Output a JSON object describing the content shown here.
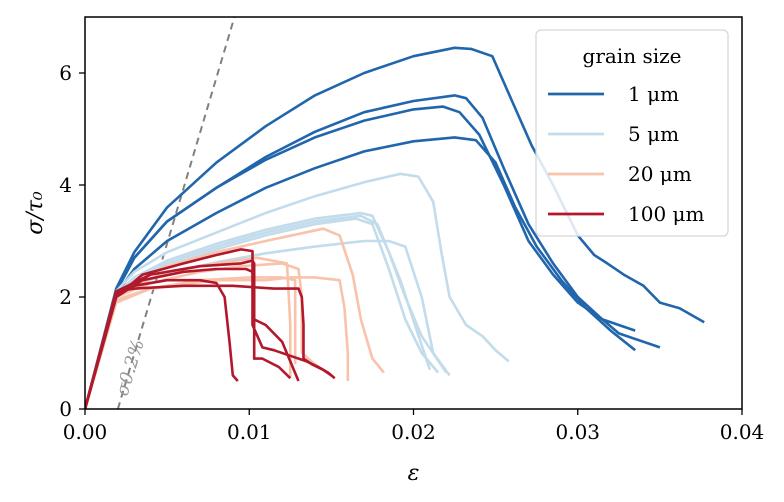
{
  "chart_data": {
    "type": "line",
    "xlabel": "ε",
    "ylabel": "σ/τ₀",
    "xlim": [
      0,
      0.04
    ],
    "ylim": [
      0,
      7
    ],
    "xticks": [
      0.0,
      0.01,
      0.02,
      0.03,
      0.04
    ],
    "xtick_labels": [
      "0.00",
      "0.01",
      "0.02",
      "0.03",
      "0.04"
    ],
    "yticks": [
      0,
      2,
      4,
      6
    ],
    "ytick_labels": [
      "0",
      "2",
      "4",
      "6"
    ],
    "grid": false,
    "legend": {
      "title": "grain size",
      "placement": "top-right",
      "entries": [
        {
          "label": "1 μm",
          "color": "#2166ac"
        },
        {
          "label": "5 μm",
          "color": "#c2dcec"
        },
        {
          "label": "20 μm",
          "color": "#f8c3aa"
        },
        {
          "label": "100 μm",
          "color": "#b2182b"
        }
      ]
    },
    "annotation": {
      "text": "σ0.2%",
      "line_x": [
        0.002,
        0.0091
      ],
      "line_y": [
        0,
        7
      ],
      "color": "#808080"
    },
    "series": [
      {
        "name": "1 μm",
        "group": 0,
        "x": [
          0,
          0.0019,
          0.003,
          0.005,
          0.008,
          0.011,
          0.014,
          0.017,
          0.02,
          0.0225,
          0.0235,
          0.0248,
          0.026,
          0.0272,
          0.0285,
          0.03,
          0.031,
          0.0318,
          0.0328,
          0.034,
          0.035,
          0.0362,
          0.0377
        ],
        "y": [
          0,
          2.15,
          2.8,
          3.6,
          4.4,
          5.05,
          5.6,
          6.0,
          6.3,
          6.45,
          6.43,
          6.3,
          5.5,
          4.7,
          4.0,
          3.1,
          2.75,
          2.6,
          2.4,
          2.2,
          1.9,
          1.8,
          1.55
        ]
      },
      {
        "name": "1 μm",
        "group": 0,
        "x": [
          0,
          0.0019,
          0.003,
          0.005,
          0.008,
          0.011,
          0.014,
          0.017,
          0.02,
          0.0225,
          0.0232,
          0.0242,
          0.0255,
          0.027,
          0.0285,
          0.03,
          0.0315,
          0.0325,
          0.035
        ],
        "y": [
          0,
          2.1,
          2.7,
          3.35,
          3.95,
          4.5,
          4.95,
          5.3,
          5.5,
          5.6,
          5.55,
          5.2,
          4.3,
          3.3,
          2.6,
          2.0,
          1.6,
          1.35,
          1.1
        ]
      },
      {
        "name": "1 μm",
        "group": 0,
        "x": [
          0,
          0.0019,
          0.003,
          0.005,
          0.008,
          0.011,
          0.014,
          0.017,
          0.02,
          0.0218,
          0.0228,
          0.024,
          0.0255,
          0.027,
          0.0285,
          0.03,
          0.0315,
          0.0335
        ],
        "y": [
          0,
          2.1,
          2.7,
          3.35,
          3.95,
          4.45,
          4.85,
          5.15,
          5.35,
          5.4,
          5.3,
          4.9,
          4.0,
          3.0,
          2.4,
          1.9,
          1.6,
          1.4
        ]
      },
      {
        "name": "1 μm",
        "group": 0,
        "x": [
          0,
          0.0019,
          0.003,
          0.005,
          0.008,
          0.011,
          0.014,
          0.017,
          0.02,
          0.0225,
          0.0238,
          0.025,
          0.0262,
          0.0275,
          0.029,
          0.0305,
          0.032,
          0.0335
        ],
        "y": [
          0,
          2.05,
          2.5,
          3.0,
          3.5,
          3.95,
          4.3,
          4.6,
          4.78,
          4.85,
          4.8,
          4.4,
          3.6,
          2.9,
          2.3,
          1.8,
          1.4,
          1.05
        ]
      },
      {
        "name": "5 μm",
        "group": 1,
        "x": [
          0,
          0.0019,
          0.003,
          0.005,
          0.008,
          0.011,
          0.014,
          0.017,
          0.0192,
          0.0203,
          0.0212,
          0.0217,
          0.0222,
          0.0232,
          0.0242,
          0.025,
          0.0258
        ],
        "y": [
          0,
          2.1,
          2.45,
          2.8,
          3.15,
          3.5,
          3.8,
          4.05,
          4.2,
          4.15,
          3.7,
          2.8,
          2.0,
          1.5,
          1.3,
          1.05,
          0.85
        ]
      },
      {
        "name": "5 μm",
        "group": 1,
        "x": [
          0,
          0.0019,
          0.003,
          0.005,
          0.008,
          0.011,
          0.014,
          0.0168,
          0.0175,
          0.0185,
          0.0195,
          0.0205,
          0.022
        ],
        "y": [
          0,
          2.05,
          2.35,
          2.65,
          2.95,
          3.2,
          3.4,
          3.5,
          3.45,
          2.8,
          2.0,
          1.3,
          0.65
        ]
      },
      {
        "name": "5 μm",
        "group": 1,
        "x": [
          0,
          0.0019,
          0.003,
          0.005,
          0.008,
          0.011,
          0.014,
          0.0168,
          0.0178,
          0.0192,
          0.0202,
          0.021
        ],
        "y": [
          0,
          2.0,
          2.3,
          2.6,
          2.9,
          3.15,
          3.35,
          3.45,
          3.3,
          2.3,
          1.4,
          0.7
        ]
      },
      {
        "name": "5 μm",
        "group": 1,
        "x": [
          0,
          0.0019,
          0.003,
          0.005,
          0.008,
          0.011,
          0.014,
          0.0165,
          0.0175,
          0.0185,
          0.0195,
          0.0205,
          0.0215
        ],
        "y": [
          0,
          2.0,
          2.25,
          2.55,
          2.85,
          3.1,
          3.3,
          3.4,
          3.3,
          2.5,
          1.6,
          1.0,
          0.65
        ]
      },
      {
        "name": "5 μm",
        "group": 1,
        "x": [
          0,
          0.0019,
          0.003,
          0.005,
          0.008,
          0.011,
          0.014,
          0.017,
          0.0185,
          0.0195,
          0.0205,
          0.0212,
          0.0222
        ],
        "y": [
          0,
          2.0,
          2.2,
          2.42,
          2.62,
          2.78,
          2.9,
          3.0,
          3.0,
          2.9,
          2.0,
          1.0,
          0.6
        ]
      },
      {
        "name": "20 μm",
        "group": 2,
        "x": [
          0,
          0.0019,
          0.003,
          0.005,
          0.008,
          0.011,
          0.0145,
          0.0155,
          0.0163,
          0.0168,
          0.0175,
          0.0182
        ],
        "y": [
          0,
          2.0,
          2.25,
          2.55,
          2.8,
          3.0,
          3.22,
          3.1,
          2.4,
          1.6,
          0.9,
          0.65
        ]
      },
      {
        "name": "20 μm",
        "group": 2,
        "x": [
          0,
          0.0019,
          0.003,
          0.005,
          0.008,
          0.0105,
          0.0123,
          0.0125,
          0.0125
        ],
        "y": [
          0,
          2.0,
          2.2,
          2.45,
          2.6,
          2.7,
          2.6,
          1.5,
          0.55
        ]
      },
      {
        "name": "20 μm",
        "group": 2,
        "x": [
          0,
          0.0019,
          0.004,
          0.007,
          0.0095,
          0.012,
          0.013,
          0.0132,
          0.0132,
          0.014,
          0.0145,
          0.015
        ],
        "y": [
          0,
          2.0,
          2.25,
          2.45,
          2.55,
          2.6,
          2.5,
          2.0,
          1.0,
          0.8,
          0.7,
          0.6
        ]
      },
      {
        "name": "20 μm",
        "group": 2,
        "x": [
          0,
          0.0019,
          0.004,
          0.007,
          0.01,
          0.012,
          0.0128,
          0.0128
        ],
        "y": [
          0,
          1.95,
          2.15,
          2.3,
          2.35,
          2.35,
          2.3,
          0.8
        ]
      },
      {
        "name": "20 μm",
        "group": 2,
        "x": [
          0,
          0.0019,
          0.004,
          0.008,
          0.011,
          0.0125,
          0.014,
          0.0155,
          0.0158,
          0.016,
          0.016
        ],
        "y": [
          0,
          1.9,
          2.15,
          2.3,
          2.3,
          2.35,
          2.35,
          2.3,
          1.8,
          1.0,
          0.5
        ]
      },
      {
        "name": "100 μm",
        "group": 3,
        "x": [
          0,
          0.0019,
          0.0035,
          0.006,
          0.008,
          0.0095,
          0.0102,
          0.0102,
          0.0108,
          0.0115,
          0.0125,
          0.0135,
          0.0142,
          0.0148,
          0.0152
        ],
        "y": [
          0,
          2.0,
          2.4,
          2.6,
          2.75,
          2.85,
          2.82,
          1.5,
          1.1,
          1.05,
          0.95,
          0.85,
          0.75,
          0.65,
          0.55
        ]
      },
      {
        "name": "100 μm",
        "group": 3,
        "x": [
          0,
          0.0019,
          0.0035,
          0.006,
          0.008,
          0.0098,
          0.0102,
          0.0103,
          0.0103,
          0.0108,
          0.0118,
          0.0125
        ],
        "y": [
          0,
          2.0,
          2.3,
          2.45,
          2.5,
          2.5,
          2.45,
          1.8,
          0.9,
          0.9,
          0.75,
          0.55
        ]
      },
      {
        "name": "100 μm",
        "group": 3,
        "x": [
          0,
          0.0019,
          0.004,
          0.007,
          0.0095,
          0.0102,
          0.0103,
          0.0103,
          0.011,
          0.012,
          0.013
        ],
        "y": [
          0,
          2.1,
          2.4,
          2.55,
          2.6,
          2.65,
          2.6,
          1.6,
          1.5,
          1.2,
          0.5
        ]
      },
      {
        "name": "100 μm",
        "group": 3,
        "x": [
          0,
          0.0019,
          0.003,
          0.005,
          0.007,
          0.008,
          0.0085,
          0.0088,
          0.009,
          0.0093
        ],
        "y": [
          0,
          2.05,
          2.2,
          2.3,
          2.3,
          2.25,
          2.0,
          1.2,
          0.6,
          0.5
        ]
      },
      {
        "name": "100 μm",
        "group": 3,
        "x": [
          0,
          0.0019,
          0.003,
          0.006,
          0.009,
          0.0115,
          0.013,
          0.0132,
          0.0133,
          0.0133,
          0.0138,
          0.0145,
          0.015
        ],
        "y": [
          0,
          2.1,
          2.15,
          2.2,
          2.2,
          2.15,
          2.15,
          2.0,
          1.5,
          0.9,
          0.8,
          0.7,
          0.6
        ]
      }
    ]
  }
}
